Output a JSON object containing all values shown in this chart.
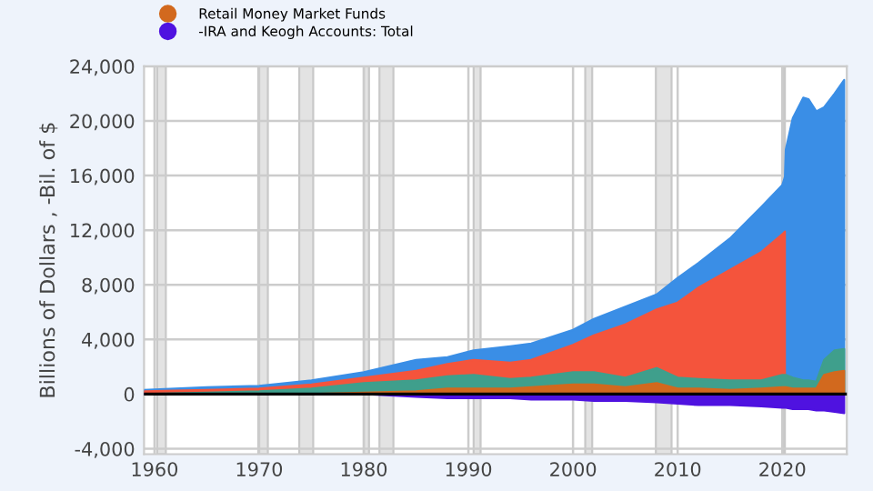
{
  "chart_data": {
    "type": "area",
    "ylabel": "Billions of Dollars , -Bil. of $",
    "x": [
      "1959-01",
      "1965-01",
      "1970-01",
      "1975-01",
      "1980-01",
      "1985-01",
      "1988-01",
      "1990-07",
      "1994-01",
      "1996-01",
      "2000-01",
      "2002-01",
      "2005-01",
      "2008-01",
      "2010-01",
      "2012-01",
      "2015-01",
      "2018-01",
      "2020-01",
      "2020-04",
      "2020-05",
      "2021-01",
      "2022-01",
      "2022-07",
      "2023-04",
      "2024-01",
      "2025-01",
      "2025-12"
    ],
    "series": [
      {
        "color": "#3a8ee6",
        "values": [
          300,
          500,
          600,
          1000,
          1600,
          2500,
          2700,
          3200,
          3500,
          3700,
          4700,
          5500,
          6400,
          7300,
          8500,
          9600,
          11400,
          13700,
          15300,
          15900,
          17900,
          20200,
          21700,
          21600,
          20700,
          21000,
          22000,
          23000
        ]
      },
      {
        "color": "#f4543c",
        "values": [
          200,
          300,
          400,
          700,
          1200,
          1700,
          2200,
          2500,
          2300,
          2500,
          3600,
          4300,
          5100,
          6200,
          6700,
          7800,
          9100,
          10400,
          11700,
          11900,
          null,
          null,
          null,
          null,
          null,
          null,
          null,
          null
        ]
      },
      {
        "color": "#3f9f8c",
        "values": [
          0,
          100,
          200,
          400,
          800,
          1000,
          1300,
          1400,
          1100,
          1200,
          1600,
          1600,
          1200,
          1900,
          1200,
          1100,
          1000,
          1000,
          1400,
          1400,
          1400,
          1200,
          1000,
          1000,
          900,
          2500,
          3200,
          3300
        ]
      },
      {
        "name": "Retail Money Market Funds",
        "color": "#d2691e",
        "values": [
          0,
          0,
          0,
          0,
          100,
          200,
          400,
          400,
          400,
          500,
          700,
          700,
          500,
          800,
          400,
          400,
          300,
          400,
          500,
          500,
          500,
          400,
          400,
          400,
          400,
          1400,
          1600,
          1700
        ]
      },
      {
        "name": "-IRA and Keogh Accounts: Total",
        "color": "#4f12e0",
        "values": [
          0,
          0,
          0,
          0,
          0,
          -200,
          -300,
          -300,
          -300,
          -400,
          -400,
          -500,
          -500,
          -600,
          -700,
          -800,
          -800,
          -900,
          -1000,
          -1000,
          -1000,
          -1100,
          -1100,
          -1100,
          -1200,
          -1200,
          -1300,
          -1400
        ]
      }
    ],
    "xlim": [
      "1959-01",
      "2026-03"
    ],
    "xticks": [
      "1960",
      "1970",
      "1980",
      "1990",
      "2000",
      "2010",
      "2020"
    ],
    "ylim": [
      -4400,
      24000
    ],
    "yticks": [
      {
        "value": -4000,
        "label": "-4,000"
      },
      0,
      {
        "value": 4000,
        "label": "4,000"
      },
      {
        "value": 8000,
        "label": "8,000"
      },
      {
        "value": 12000,
        "label": "12,000"
      },
      {
        "value": 16000,
        "label": "16,000"
      },
      {
        "value": 20000,
        "label": "20,000"
      },
      {
        "value": 24000,
        "label": "24,000"
      }
    ],
    "bands": [
      {
        "axis": "x",
        "from": "1960-04",
        "to": "1961-02",
        "color": "#e3e3e3"
      },
      {
        "axis": "x",
        "from": "1969-12",
        "to": "1970-11",
        "color": "#e3e3e3"
      },
      {
        "axis": "x",
        "from": "1973-11",
        "to": "1975-03",
        "color": "#e3e3e3"
      },
      {
        "axis": "x",
        "from": "1980-01",
        "to": "1980-07",
        "color": "#e3e3e3"
      },
      {
        "axis": "x",
        "from": "1981-07",
        "to": "1982-11",
        "color": "#e3e3e3"
      },
      {
        "axis": "x",
        "from": "1990-07",
        "to": "1991-03",
        "color": "#e3e3e3"
      },
      {
        "axis": "x",
        "from": "2001-03",
        "to": "2001-11",
        "color": "#e3e3e3"
      },
      {
        "axis": "x",
        "from": "2007-12",
        "to": "2009-06",
        "color": "#e3e3e3"
      },
      {
        "axis": "x",
        "from": "2020-02",
        "to": "2020-04",
        "color": "#e3e3e3"
      }
    ],
    "ref_lines": [
      {
        "axis": "y",
        "value": 0,
        "color": "#000000"
      }
    ],
    "grid": true,
    "legend": "top left"
  }
}
